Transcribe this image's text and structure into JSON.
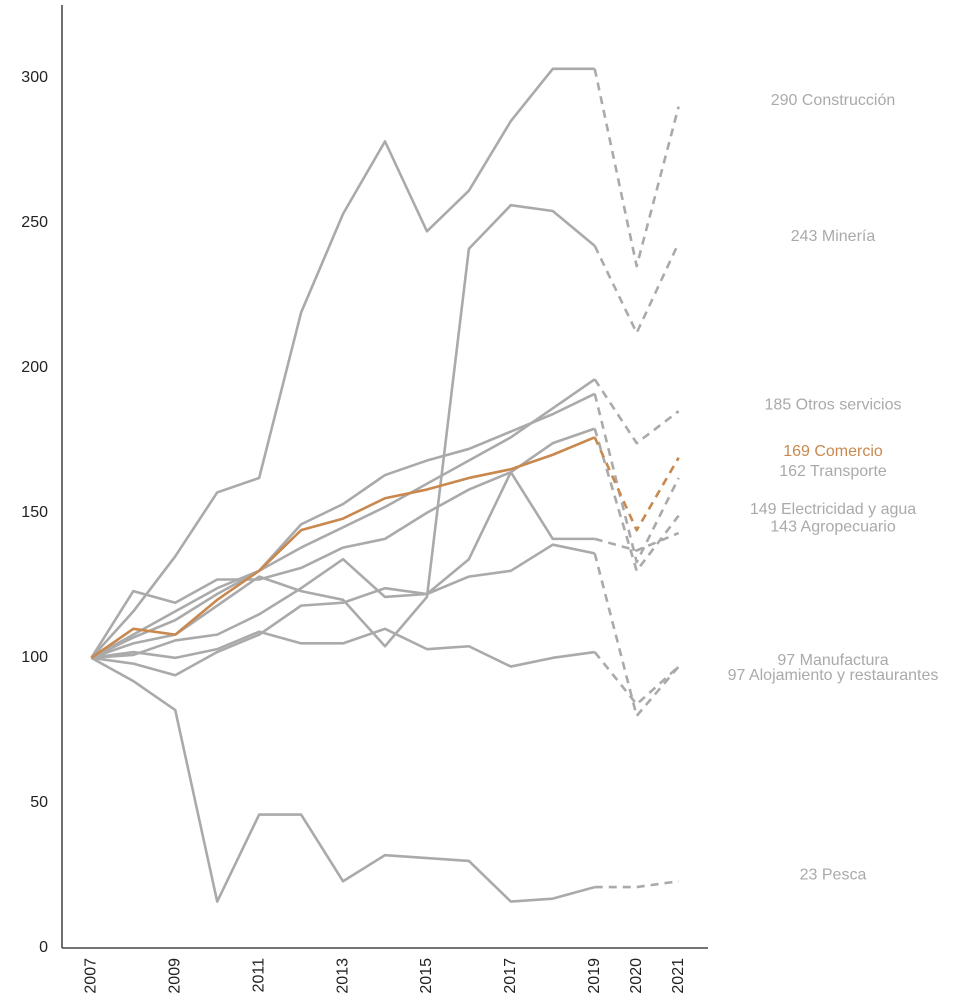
{
  "chart_data": {
    "type": "line",
    "x": [
      2007,
      2008,
      2009,
      2010,
      2011,
      2012,
      2013,
      2014,
      2015,
      2016,
      2017,
      2018,
      2019,
      2020,
      2021
    ],
    "xlim": [
      2006.3,
      2021.7
    ],
    "xticks": [
      2007,
      2009,
      2011,
      2013,
      2015,
      2017,
      2019,
      2020,
      2021
    ],
    "ylim": [
      0,
      325
    ],
    "yticks": [
      0,
      50,
      100,
      150,
      200,
      250,
      300
    ],
    "dashed_from": 2019,
    "series": [
      {
        "name": "Construcción",
        "label": "290 Construcción",
        "color": "#aaaaaa",
        "values": [
          100,
          116,
          135,
          157,
          162,
          219,
          253,
          278,
          247,
          261,
          285,
          303,
          303,
          235,
          290
        ]
      },
      {
        "name": "Minería",
        "label": "243 Minería",
        "color": "#aaaaaa",
        "values": [
          100,
          105,
          108,
          118,
          128,
          123,
          120,
          104,
          121,
          241,
          256,
          254,
          242,
          212,
          243
        ]
      },
      {
        "name": "Otros servicios",
        "label": "185 Otros servicios",
        "color": "#aaaaaa",
        "values": [
          100,
          108,
          116,
          124,
          130,
          138,
          145,
          152,
          160,
          168,
          176,
          186,
          196,
          174,
          185
        ]
      },
      {
        "name": "Transporte",
        "label": "162 Transporte",
        "color": "#aaaaaa",
        "values": [
          100,
          107,
          113,
          122,
          130,
          146,
          153,
          163,
          168,
          172,
          178,
          184,
          191,
          133,
          162
        ]
      },
      {
        "name": "Electricidad y agua",
        "label": "149 Electricidad y agua",
        "color": "#aaaaaa",
        "values": [
          100,
          123,
          119,
          127,
          127,
          131,
          138,
          141,
          150,
          158,
          164,
          174,
          179,
          130,
          149
        ]
      },
      {
        "name": "Agropecuario",
        "label": "143 Agropecuario",
        "color": "#aaaaaa",
        "values": [
          100,
          101,
          106,
          108,
          115,
          124,
          134,
          121,
          122,
          134,
          164,
          141,
          141,
          137,
          143
        ]
      },
      {
        "name": "Manufactura",
        "label": "97 Manufactura",
        "color": "#aaaaaa",
        "values": [
          100,
          102,
          100,
          103,
          109,
          105,
          105,
          110,
          103,
          104,
          97,
          100,
          102,
          84,
          97
        ]
      },
      {
        "name": "Alojamiento y restaurantes",
        "label": "97 Alojamiento y restaurantes",
        "color": "#aaaaaa",
        "values": [
          100,
          98,
          94,
          102,
          108,
          118,
          119,
          124,
          122,
          128,
          130,
          139,
          136,
          80,
          97
        ]
      },
      {
        "name": "Pesca",
        "label": "23 Pesca",
        "color": "#aaaaaa",
        "values": [
          100,
          92,
          82,
          16,
          46,
          46,
          23,
          32,
          31,
          30,
          16,
          17,
          21,
          21,
          23
        ]
      },
      {
        "name": "Comercio",
        "label": "169 Comercio",
        "color": "#c8884e",
        "values": [
          100,
          110,
          108,
          120,
          130,
          144,
          148,
          155,
          158,
          162,
          165,
          170,
          176,
          144,
          169
        ]
      }
    ]
  }
}
